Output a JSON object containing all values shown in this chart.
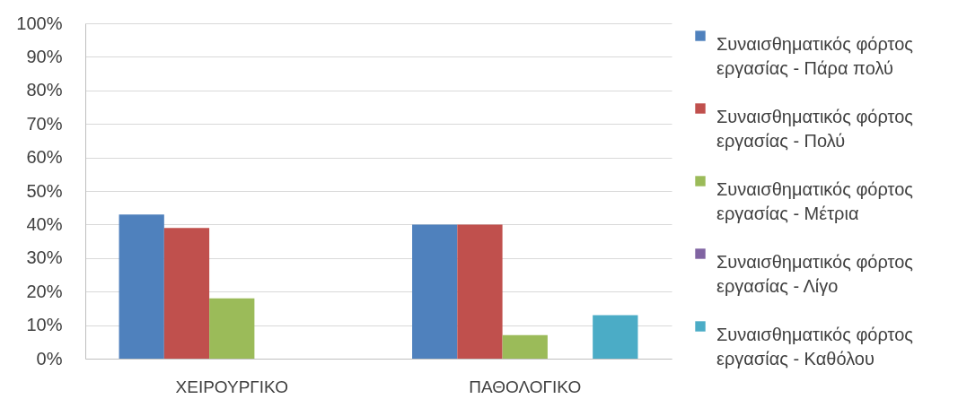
{
  "chart_data": {
    "type": "bar",
    "categories": [
      "ΧΕΙΡΟΥΡΓΙΚΟ",
      "ΠΑΘΟΛΟΓΙΚΟ"
    ],
    "series": [
      {
        "name": "Συναισθηματικός φόρτος εργασίας - Πάρα πολύ",
        "color": "#4f81bd",
        "values": [
          43,
          40
        ]
      },
      {
        "name": "Συναισθηματικός φόρτος εργασίας - Πολύ",
        "color": "#c0504d",
        "values": [
          39,
          40
        ]
      },
      {
        "name": "Συναισθηματικός φόρτος εργασίας - Μέτρια",
        "color": "#9bbb59",
        "values": [
          18,
          7
        ]
      },
      {
        "name": "Συναισθηματικός φόρτος εργασίας - Λίγο",
        "color": "#8064a2",
        "values": [
          0,
          0
        ]
      },
      {
        "name": "Συναισθηματικός φόρτος εργασίας - Καθόλου",
        "color": "#4bacc6",
        "values": [
          0,
          13
        ]
      }
    ],
    "ylim": [
      0,
      100
    ],
    "yticks": [
      {
        "value": 0,
        "label": "0%"
      },
      {
        "value": 10,
        "label": "10%"
      },
      {
        "value": 20,
        "label": "20%"
      },
      {
        "value": 30,
        "label": "30%"
      },
      {
        "value": 40,
        "label": "40%"
      },
      {
        "value": 50,
        "label": "50%"
      },
      {
        "value": 60,
        "label": "60%"
      },
      {
        "value": 70,
        "label": "70%"
      },
      {
        "value": 80,
        "label": "80%"
      },
      {
        "value": 90,
        "label": "90%"
      },
      {
        "value": 100,
        "label": "100%"
      }
    ],
    "grid": "y",
    "legend": "right"
  }
}
